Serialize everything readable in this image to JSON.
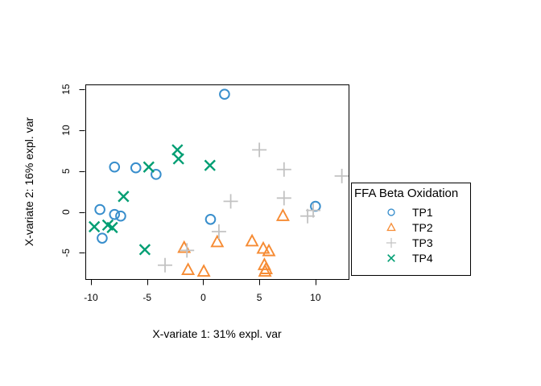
{
  "chart_data": {
    "type": "scatter",
    "title": "",
    "xlabel": "X-variate 1: 31% expl. var",
    "ylabel": "X-variate 2: 16% expl. var",
    "xlim": [
      -10.5,
      12.95
    ],
    "ylim": [
      -8.2,
      15.6
    ],
    "xticks": [
      -10,
      -5,
      0,
      5,
      10
    ],
    "yticks": [
      -5,
      0,
      5,
      10,
      15
    ],
    "grid": false,
    "axis_color": "#000000",
    "background_color": "#ffffff",
    "legend_title": "FFA Beta Oxidation",
    "legend_position": "right",
    "series": [
      {
        "name": "TP1",
        "marker": "circle",
        "color": "#388ECC",
        "points": [
          [
            1.9,
            14.4
          ],
          [
            -7.9,
            5.5
          ],
          [
            -6.0,
            5.4
          ],
          [
            -4.2,
            4.6
          ],
          [
            -9.2,
            0.3
          ],
          [
            -7.9,
            -0.3
          ],
          [
            -7.35,
            -0.5
          ],
          [
            -9.0,
            -3.2
          ],
          [
            0.65,
            -0.9
          ],
          [
            10.0,
            0.7
          ]
        ]
      },
      {
        "name": "TP2",
        "marker": "triangle",
        "color": "#F68B33",
        "points": [
          [
            -1.7,
            -4.4
          ],
          [
            -1.35,
            -7.1
          ],
          [
            0.05,
            -7.3
          ],
          [
            1.25,
            -3.7
          ],
          [
            4.35,
            -3.6
          ],
          [
            5.35,
            -4.5
          ],
          [
            5.85,
            -4.8
          ],
          [
            5.45,
            -6.5
          ],
          [
            5.6,
            -7.0
          ],
          [
            5.5,
            -7.3
          ],
          [
            7.1,
            -0.5
          ]
        ]
      },
      {
        "name": "TP3",
        "marker": "plus",
        "color": "#C2C2C2",
        "points": [
          [
            5.0,
            7.6
          ],
          [
            7.2,
            5.2
          ],
          [
            12.35,
            4.4
          ],
          [
            2.45,
            1.3
          ],
          [
            7.2,
            1.7
          ],
          [
            9.8,
            0.2
          ],
          [
            9.3,
            -0.5
          ],
          [
            1.4,
            -2.4
          ],
          [
            -1.45,
            -4.7
          ],
          [
            -3.4,
            -6.5
          ]
        ]
      },
      {
        "name": "TP4",
        "marker": "x",
        "color": "#009E73",
        "points": [
          [
            -2.3,
            7.6
          ],
          [
            -2.2,
            6.5
          ],
          [
            0.6,
            5.7
          ],
          [
            -4.85,
            5.5
          ],
          [
            -7.1,
            1.9
          ],
          [
            -9.7,
            -1.8
          ],
          [
            -8.5,
            -1.6
          ],
          [
            -8.1,
            -1.9
          ],
          [
            -5.2,
            -4.6
          ]
        ]
      }
    ]
  }
}
